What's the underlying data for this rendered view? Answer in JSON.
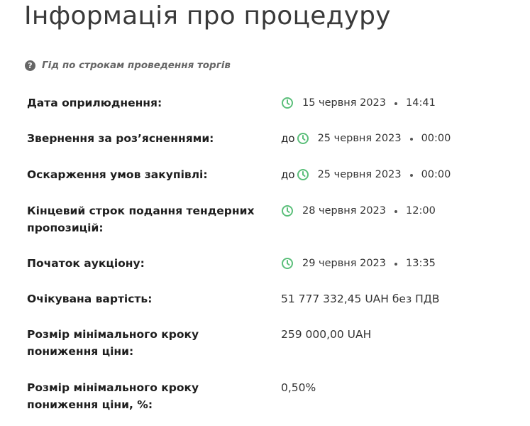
{
  "header": {
    "title": "Інформація про процедуру"
  },
  "guide": {
    "label": "Гід по строкам проведення торгів",
    "icon": "help-circle-icon"
  },
  "colors": {
    "clock_green": "#5bbf7a",
    "label_text": "#1e1e1e",
    "value_text": "#333333"
  },
  "rows": [
    {
      "label": "Дата оприлюднення:",
      "prefix": "",
      "date": "15 червня 2023",
      "time": "14:41"
    },
    {
      "label": "Звернення за роз’ясненнями:",
      "prefix": "до",
      "date": "25 червня 2023",
      "time": "00:00"
    },
    {
      "label": "Оскарження умов закупівлі:",
      "prefix": "до",
      "date": "25 червня 2023",
      "time": "00:00"
    },
    {
      "label": "Кінцевий строк подання тендерних пропозицій:",
      "prefix": "",
      "date": "28 червня 2023",
      "time": "12:00"
    },
    {
      "label": "Початок аукціону:",
      "prefix": "",
      "date": "29 червня 2023",
      "time": "13:35"
    },
    {
      "label": "Очікувана вартість:",
      "value": "51 777 332,45 UAH без ПДВ"
    },
    {
      "label": "Розмір мінімального кроку пониження ціни:",
      "value": "259 000,00 UAH"
    },
    {
      "label": "Розмір мінімального кроку пониження ціни, %:",
      "value": "0,50%"
    }
  ]
}
